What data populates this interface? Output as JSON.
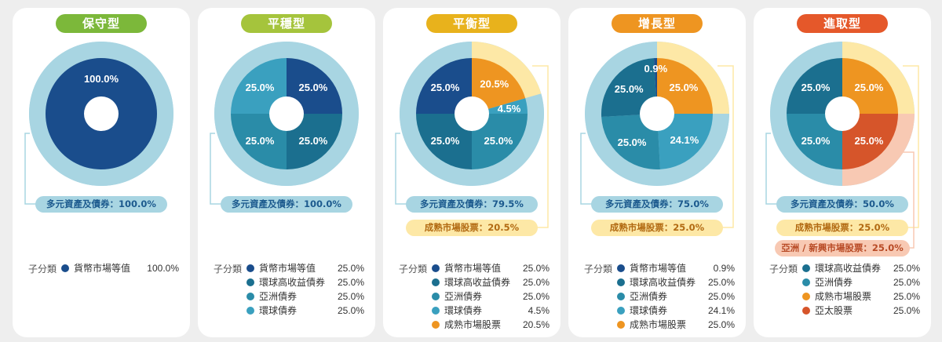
{
  "colors": {
    "navy": "#1a4d8c",
    "teal_dark": "#1b6f8f",
    "teal": "#2a8ca8",
    "teal_light": "#3aa0bf",
    "orange": "#ee9521",
    "red_orange": "#d6552a",
    "ring_blue": "#a8d5e2",
    "ring_yellow": "#fde8a6",
    "ring_peach": "#f8c9b3"
  },
  "sub_category_label": "子分類",
  "chart_data": [
    {
      "type": "pie",
      "title": "保守型",
      "title_color": "#7cb83a",
      "categories": [
        "貨幣市場等值"
      ],
      "values": [
        100.0
      ],
      "slice_colors": [
        "#1a4d8c"
      ],
      "slice_labels": [
        "100.0%"
      ],
      "ring": [
        {
          "label": "多元資產及債券：100.0%",
          "value": 100.0,
          "style": "blue"
        }
      ],
      "legend": [
        {
          "name": "貨幣市場等值",
          "value": "100.0%",
          "color": "#1a4d8c"
        }
      ]
    },
    {
      "type": "pie",
      "title": "平穩型",
      "title_color": "#a5c43c",
      "categories": [
        "貨幣市場等值",
        "環球高收益債券",
        "亞洲債券",
        "環球債券"
      ],
      "values": [
        25.0,
        25.0,
        25.0,
        25.0
      ],
      "slice_colors": [
        "#1a4d8c",
        "#1b6f8f",
        "#2a8ca8",
        "#3aa0bf"
      ],
      "slice_labels": [
        "25.0%",
        "25.0%",
        "25.0%",
        "25.0%"
      ],
      "ring": [
        {
          "label": "多元資產及債券：100.0%",
          "value": 100.0,
          "style": "blue"
        }
      ],
      "legend": [
        {
          "name": "貨幣市場等值",
          "value": "25.0%",
          "color": "#1a4d8c"
        },
        {
          "name": "環球高收益債券",
          "value": "25.0%",
          "color": "#1b6f8f"
        },
        {
          "name": "亞洲債券",
          "value": "25.0%",
          "color": "#2a8ca8"
        },
        {
          "name": "環球債券",
          "value": "25.0%",
          "color": "#3aa0bf"
        }
      ]
    },
    {
      "type": "pie",
      "title": "平衡型",
      "title_color": "#e8b21c",
      "categories": [
        "成熟市場股票",
        "環球債券",
        "亞洲債券",
        "環球高收益債券",
        "貨幣市場等值"
      ],
      "values": [
        20.5,
        4.5,
        25.0,
        25.0,
        25.0
      ],
      "slice_colors": [
        "#ee9521",
        "#3aa0bf",
        "#2a8ca8",
        "#1b6f8f",
        "#1a4d8c"
      ],
      "slice_labels": [
        "20.5%",
        "4.5%",
        "25.0%",
        "25.0%",
        "25.0%"
      ],
      "ring": [
        {
          "label": "成熟市場股票：20.5%",
          "value": 20.5,
          "style": "yellow"
        },
        {
          "label": "多元資產及債券：79.5%",
          "value": 79.5,
          "style": "blue"
        }
      ],
      "legend": [
        {
          "name": "貨幣市場等值",
          "value": "25.0%",
          "color": "#1a4d8c"
        },
        {
          "name": "環球高收益債券",
          "value": "25.0%",
          "color": "#1b6f8f"
        },
        {
          "name": "亞洲債券",
          "value": "25.0%",
          "color": "#2a8ca8"
        },
        {
          "name": "環球債券",
          "value": "4.5%",
          "color": "#3aa0bf"
        },
        {
          "name": "成熟市場股票",
          "value": "20.5%",
          "color": "#ee9521"
        }
      ]
    },
    {
      "type": "pie",
      "title": "增長型",
      "title_color": "#ee9521",
      "categories": [
        "成熟市場股票",
        "環球債券",
        "亞洲債券",
        "環球高收益債券",
        "貨幣市場等值"
      ],
      "values": [
        25.0,
        24.1,
        25.0,
        25.0,
        0.9
      ],
      "slice_colors": [
        "#ee9521",
        "#3aa0bf",
        "#2a8ca8",
        "#1b6f8f",
        "#1a4d8c"
      ],
      "slice_labels": [
        "25.0%",
        "24.1%",
        "25.0%",
        "25.0%",
        "0.9%"
      ],
      "ring": [
        {
          "label": "成熟市場股票：25.0%",
          "value": 25.0,
          "style": "yellow"
        },
        {
          "label": "多元資產及債券：75.0%",
          "value": 75.0,
          "style": "blue"
        }
      ],
      "legend": [
        {
          "name": "貨幣市場等值",
          "value": "0.9%",
          "color": "#1a4d8c"
        },
        {
          "name": "環球高收益債券",
          "value": "25.0%",
          "color": "#1b6f8f"
        },
        {
          "name": "亞洲債券",
          "value": "25.0%",
          "color": "#2a8ca8"
        },
        {
          "name": "環球債券",
          "value": "24.1%",
          "color": "#3aa0bf"
        },
        {
          "name": "成熟市場股票",
          "value": "25.0%",
          "color": "#ee9521"
        }
      ]
    },
    {
      "type": "pie",
      "title": "進取型",
      "title_color": "#e5582a",
      "categories": [
        "成熟市場股票",
        "亞太股票",
        "亞洲債券",
        "環球高收益債券"
      ],
      "values": [
        25.0,
        25.0,
        25.0,
        25.0
      ],
      "slice_colors": [
        "#ee9521",
        "#d6552a",
        "#2a8ca8",
        "#1b6f8f"
      ],
      "slice_labels": [
        "25.0%",
        "25.0%",
        "25.0%",
        "25.0%"
      ],
      "ring": [
        {
          "label": "成熟市場股票：25.0%",
          "value": 25.0,
          "style": "yellow"
        },
        {
          "label": "亞洲 / 新興市場股票：25.0%",
          "value": 25.0,
          "style": "peach"
        },
        {
          "label": "多元資產及債券：50.0%",
          "value": 50.0,
          "style": "blue"
        }
      ],
      "legend": [
        {
          "name": "環球高收益債券",
          "value": "25.0%",
          "color": "#1b6f8f"
        },
        {
          "name": "亞洲債券",
          "value": "25.0%",
          "color": "#2a8ca8"
        },
        {
          "name": "成熟市場股票",
          "value": "25.0%",
          "color": "#ee9521"
        },
        {
          "name": "亞太股票",
          "value": "25.0%",
          "color": "#d6552a"
        }
      ]
    }
  ]
}
